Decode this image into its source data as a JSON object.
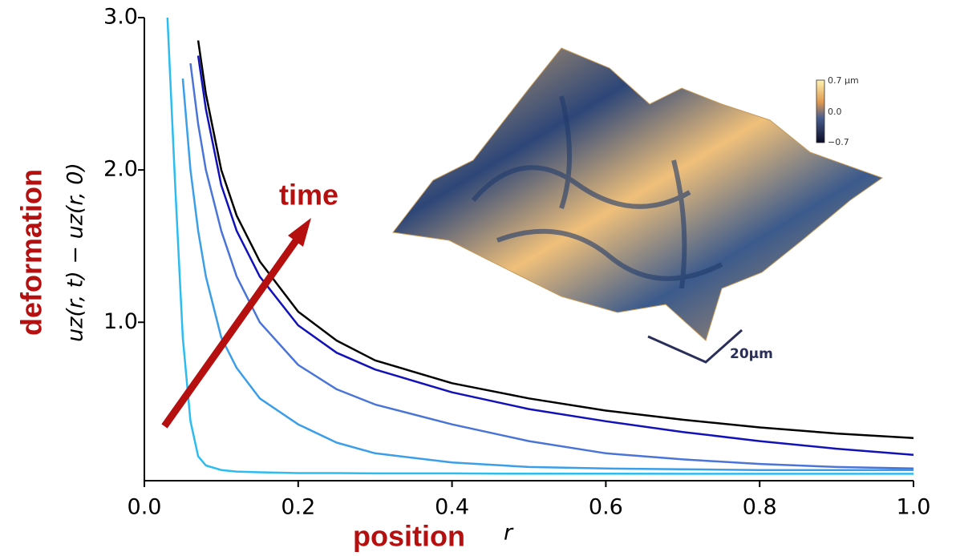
{
  "chart_data": {
    "type": "line",
    "ylabel": "uz(r, t) − uz(r, 0)",
    "ylabel_word": "deformation",
    "xlabel_word": "position",
    "xlabel": "r",
    "annotation": "time",
    "inset": {
      "colorbar_ticks": [
        "0.7 µm",
        "0.0",
        "−0.7"
      ],
      "scale_bar": "20µm"
    },
    "x": [
      0.03,
      0.04,
      0.05,
      0.06,
      0.07,
      0.08,
      0.1,
      0.12,
      0.15,
      0.2,
      0.25,
      0.3,
      0.4,
      0.5,
      0.6,
      0.7,
      0.8,
      0.9,
      1.0
    ],
    "series": [
      {
        "color": "#2bbcf0",
        "values": [
          3.0,
          1.9,
          0.9,
          0.35,
          0.12,
          0.06,
          0.03,
          0.02,
          0.015,
          0.01,
          0.01,
          0.008,
          0.008,
          0.006,
          0.006,
          0.005,
          0.005,
          0.005,
          0.005
        ]
      },
      {
        "color": "#3a9ee8",
        "values": [
          null,
          null,
          2.6,
          2.0,
          1.6,
          1.3,
          0.9,
          0.7,
          0.5,
          0.33,
          0.21,
          0.14,
          0.08,
          0.05,
          0.04,
          0.035,
          0.03,
          0.03,
          0.03
        ]
      },
      {
        "color": "#4a74d8",
        "values": [
          null,
          null,
          null,
          2.7,
          2.3,
          2.0,
          1.6,
          1.3,
          1.0,
          0.72,
          0.56,
          0.46,
          0.33,
          0.22,
          0.14,
          0.1,
          0.07,
          0.05,
          0.04
        ]
      },
      {
        "color": "#1212b8",
        "values": [
          null,
          null,
          null,
          null,
          2.75,
          2.4,
          1.9,
          1.6,
          1.3,
          0.98,
          0.8,
          0.69,
          0.54,
          0.43,
          0.35,
          0.28,
          0.22,
          0.17,
          0.13
        ]
      },
      {
        "color": "#000000",
        "values": [
          null,
          null,
          null,
          null,
          2.85,
          2.5,
          2.0,
          1.7,
          1.4,
          1.07,
          0.88,
          0.75,
          0.6,
          0.5,
          0.42,
          0.36,
          0.31,
          0.27,
          0.24
        ]
      }
    ],
    "xlim": [
      0,
      1
    ],
    "ylim": [
      -0.04,
      3.0
    ],
    "xticks": [
      {
        "value": 0,
        "label": "0.0"
      },
      0.2,
      0.4,
      0.6,
      0.8,
      {
        "value": 1,
        "label": "1.0"
      }
    ],
    "yticks": [
      {
        "value": 1,
        "label": "1.0"
      },
      {
        "value": 2,
        "label": "2.0"
      },
      {
        "value": 3,
        "label": "3.0"
      }
    ]
  }
}
